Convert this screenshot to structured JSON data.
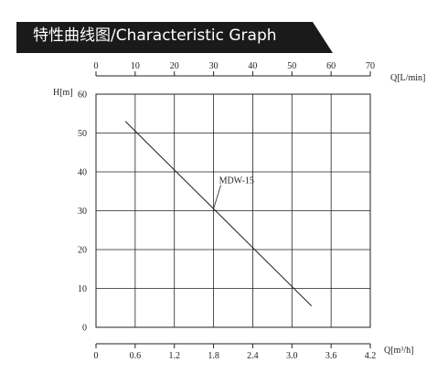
{
  "header": {
    "title": "特性曲线图/Characteristic Graph",
    "bg_color": "#1a1a1a"
  },
  "chart_data": {
    "type": "line",
    "title": "",
    "ylabel": "H[m]",
    "xlabel_bottom": "Q[m³/h]",
    "xlabel_top": "Q[L/min]",
    "xlim": [
      0,
      4.2
    ],
    "ylim": [
      0,
      60
    ],
    "x_ticks": [
      "0",
      "0.6",
      "1.2",
      "1.8",
      "2.4",
      "3.0",
      "3.6",
      "4.2"
    ],
    "x_top_lim": [
      0,
      70
    ],
    "x_top_ticks": [
      "0",
      "10",
      "20",
      "30",
      "40",
      "50",
      "60",
      "70"
    ],
    "y_ticks": [
      "0",
      "10",
      "20",
      "30",
      "40",
      "50",
      "60"
    ],
    "grid": true,
    "series": [
      {
        "name": "MDW-15",
        "x": [
          0.45,
          3.3
        ],
        "y": [
          53,
          5.5
        ]
      }
    ]
  }
}
